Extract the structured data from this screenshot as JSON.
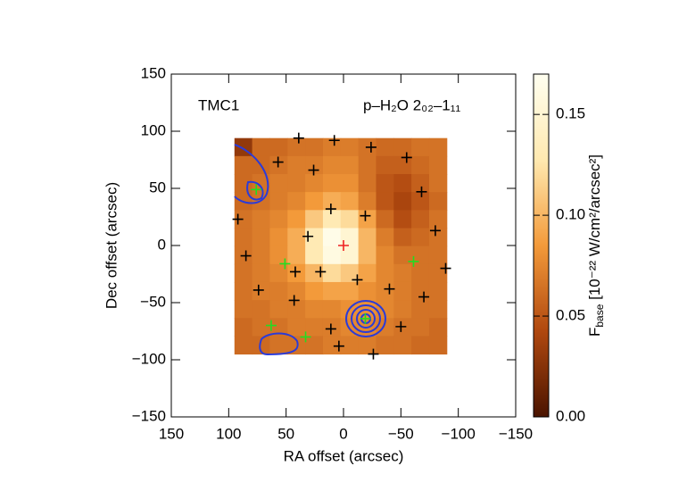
{
  "chart_data": {
    "type": "heatmap",
    "title": "TMC1",
    "subtitle": "p–H₂O 2₀₂–1₁₁",
    "x_label": "RA offset (arcsec)",
    "y_label": "Dec offset (arcsec)",
    "xlim": [
      150,
      -150
    ],
    "ylim": [
      -150,
      150
    ],
    "xticks": [
      150,
      100,
      50,
      0,
      {
        "value": -50,
        "label": "−50"
      },
      {
        "value": -100,
        "label": "−100"
      },
      {
        "value": -150,
        "label": "−150"
      }
    ],
    "yticks": [
      {
        "value": -150,
        "label": "−150"
      },
      {
        "value": -100,
        "label": "−100"
      },
      {
        "value": -50,
        "label": "−50"
      },
      0,
      50,
      100,
      150
    ],
    "image_xlim": [
      95,
      -90
    ],
    "image_ylim": [
      -95,
      94
    ],
    "z": [
      [
        0.03,
        0.06,
        0.06,
        0.065,
        0.065,
        0.07,
        0.07,
        0.065,
        0.06,
        0.06,
        0.065,
        0.065
      ],
      [
        0.06,
        0.06,
        0.065,
        0.07,
        0.07,
        0.075,
        0.075,
        0.065,
        0.055,
        0.055,
        0.06,
        0.065
      ],
      [
        0.06,
        0.065,
        0.07,
        0.07,
        0.075,
        0.08,
        0.08,
        0.065,
        0.05,
        0.045,
        0.055,
        0.065
      ],
      [
        0.06,
        0.065,
        0.07,
        0.075,
        0.085,
        0.095,
        0.09,
        0.07,
        0.05,
        0.04,
        0.05,
        0.06
      ],
      [
        0.065,
        0.07,
        0.075,
        0.085,
        0.11,
        0.13,
        0.12,
        0.09,
        0.06,
        0.045,
        0.055,
        0.065
      ],
      [
        0.065,
        0.07,
        0.08,
        0.095,
        0.13,
        0.165,
        0.15,
        0.1,
        0.07,
        0.055,
        0.06,
        0.065
      ],
      [
        0.065,
        0.07,
        0.08,
        0.095,
        0.13,
        0.16,
        0.15,
        0.1,
        0.075,
        0.065,
        0.065,
        0.065
      ],
      [
        0.065,
        0.07,
        0.075,
        0.085,
        0.1,
        0.12,
        0.11,
        0.09,
        0.075,
        0.07,
        0.065,
        0.065
      ],
      [
        0.065,
        0.07,
        0.07,
        0.075,
        0.085,
        0.09,
        0.09,
        0.08,
        0.075,
        0.07,
        0.065,
        0.065
      ],
      [
        0.065,
        0.065,
        0.07,
        0.07,
        0.075,
        0.075,
        0.08,
        0.08,
        0.075,
        0.07,
        0.065,
        0.065
      ],
      [
        0.06,
        0.065,
        0.065,
        0.07,
        0.07,
        0.07,
        0.075,
        0.075,
        0.07,
        0.065,
        0.065,
        0.06
      ],
      [
        0.06,
        0.06,
        0.065,
        0.065,
        0.065,
        0.07,
        0.07,
        0.07,
        0.065,
        0.065,
        0.06,
        0.06
      ]
    ],
    "colormap": [
      "#4a1400",
      "#b0480f",
      "#f39a3a",
      "#ffe9b0",
      "#fffff0"
    ],
    "clim": [
      0,
      0.17
    ],
    "cticks": [
      {
        "value": 0,
        "label": "0.00"
      },
      {
        "value": 0.05,
        "label": "0.05"
      },
      {
        "value": 0.1,
        "label": "0.10"
      },
      {
        "value": 0.15,
        "label": "0.15"
      }
    ],
    "colorbar_label": {
      "main": "F",
      "sub": "base",
      "rest": " [10⁻²² W/cm²/arcsec²]"
    },
    "series": [
      {
        "color": "#000000",
        "x": [
          39,
          8,
          -24,
          -55,
          57,
          26,
          11,
          -19,
          -68,
          92,
          31,
          -80,
          85,
          42,
          20,
          -89,
          74,
          43,
          -12,
          -40,
          -70,
          11,
          4,
          -26,
          -50
        ],
        "y": [
          94,
          92,
          86,
          77,
          73,
          66,
          32,
          26,
          47,
          23,
          8,
          13,
          -9,
          -23,
          -23,
          -20,
          -39,
          -48,
          -30,
          -38,
          -45,
          -73,
          -88,
          -95,
          -71
        ]
      },
      {
        "color": "#22dd22",
        "x": [
          76,
          51,
          -19,
          -61,
          63,
          33
        ],
        "y": [
          49,
          -16,
          -64,
          -14,
          -70,
          -80
        ]
      },
      {
        "color": "#ee2222",
        "x": [
          0
        ],
        "y": [
          0
        ]
      }
    ]
  }
}
